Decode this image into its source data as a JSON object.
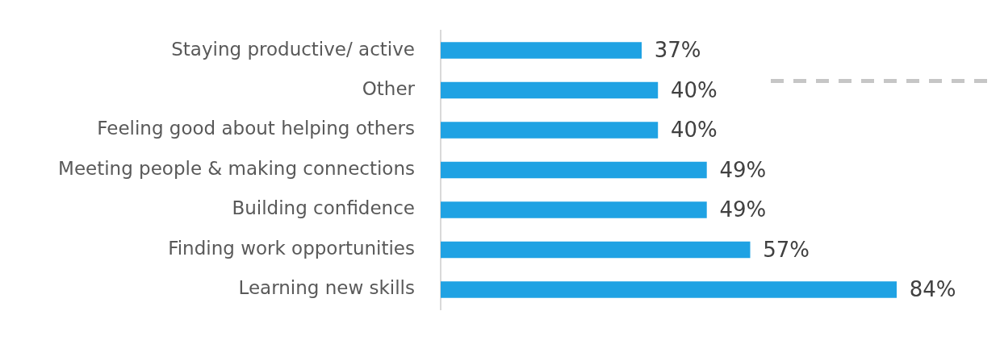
{
  "chart_data": {
    "type": "bar",
    "orientation": "horizontal",
    "categories": [
      "Staying productive/ active",
      "Other",
      "Feeling good about helping others",
      "Meeting people & making connections",
      "Building confidence",
      "Finding work opportunities",
      "Learning new skills"
    ],
    "values": [
      37,
      40,
      40,
      49,
      49,
      57,
      84
    ],
    "color": "#1fa2e3",
    "data_labels": true,
    "value_labels": [
      "37%",
      "40%",
      "40%",
      "49%",
      "49%",
      "57%",
      "84%"
    ],
    "legend": false
  }
}
